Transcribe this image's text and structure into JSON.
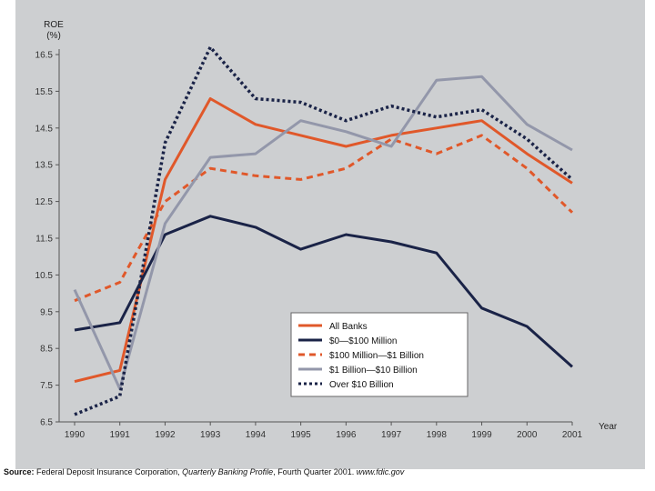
{
  "chart_data": {
    "type": "line",
    "title": "",
    "ylabel_line1": "ROE",
    "ylabel_line2": "(%)",
    "xlabel": "Year",
    "ylim": [
      6.5,
      16.5
    ],
    "yticks": [
      "6.5",
      "7.5",
      "8.5",
      "9.5",
      "10.5",
      "11.5",
      "12.5",
      "13.5",
      "14.5",
      "15.5",
      "16.5"
    ],
    "x": [
      "1990",
      "1991",
      "1992",
      "1993",
      "1994",
      "1995",
      "1996",
      "1997",
      "1998",
      "1999",
      "2000",
      "2001"
    ],
    "legend_position": "center-right",
    "series": [
      {
        "name": "All Banks",
        "color": "#e0582a",
        "style": "solid",
        "values": [
          7.6,
          7.9,
          13.1,
          15.3,
          14.6,
          14.3,
          14.0,
          14.3,
          14.5,
          14.7,
          13.8,
          13.0
        ]
      },
      {
        "name": "$0—$100 Million",
        "color": "#1a2347",
        "style": "solid",
        "values": [
          9.0,
          9.2,
          11.6,
          12.1,
          11.8,
          11.2,
          11.6,
          11.4,
          11.1,
          9.6,
          9.1,
          8.0
        ]
      },
      {
        "name": "$100 Million—$1 Billion",
        "color": "#e0582a",
        "style": "dashed",
        "values": [
          9.8,
          10.3,
          12.5,
          13.4,
          13.2,
          13.1,
          13.4,
          14.2,
          13.8,
          14.3,
          13.4,
          12.2
        ]
      },
      {
        "name": "$1 Billion—$10 Billion",
        "color": "#9397aa",
        "style": "solid",
        "values": [
          10.1,
          7.4,
          11.9,
          13.7,
          13.8,
          14.7,
          14.4,
          14.0,
          15.8,
          15.9,
          14.6,
          13.9
        ]
      },
      {
        "name": "Over $10 Billion",
        "color": "#1a2347",
        "style": "dotted",
        "values": [
          6.7,
          7.2,
          14.1,
          16.7,
          15.3,
          15.2,
          14.7,
          15.1,
          14.8,
          15.0,
          14.2,
          13.1
        ]
      }
    ]
  },
  "source": {
    "label": "Source:",
    "text1": "Federal Deposit Insurance Corporation,",
    "text2": "Quarterly Banking Profile",
    "text3": ", Fourth Quarter 2001.",
    "url": "www.fdic.gov"
  }
}
